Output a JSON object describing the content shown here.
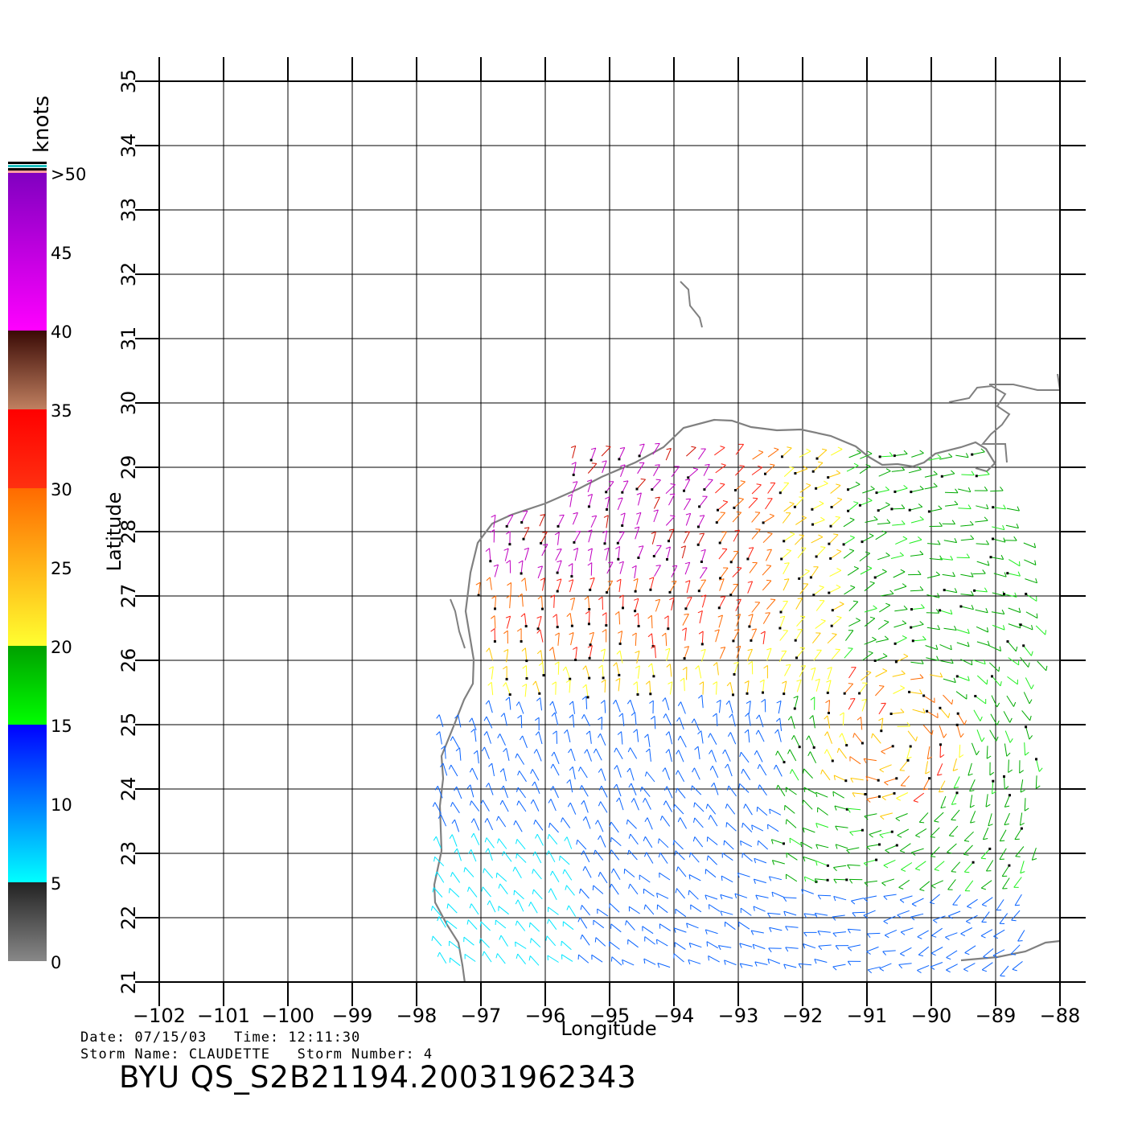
{
  "map": {
    "xlabel": "Longitude",
    "ylabel": "Latitude",
    "lon_ticks": [
      -102,
      -101,
      -100,
      -99,
      -98,
      -97,
      -96,
      -95,
      -94,
      -93,
      -92,
      -91,
      -90,
      -89,
      -88
    ],
    "lat_ticks": [
      21,
      22,
      23,
      24,
      25,
      26,
      27,
      28,
      29,
      30,
      31,
      32,
      33,
      34,
      35
    ],
    "lon_range": [
      -102,
      -88
    ],
    "lat_range": [
      21,
      35
    ],
    "grid": true,
    "coastline_color": "#808080"
  },
  "colorbar": {
    "unit_label": "knots",
    "bands": [
      {
        "from": 0,
        "to": 5,
        "top_color": "#222222",
        "bottom_color": "#888888"
      },
      {
        "from": 5,
        "to": 15,
        "top_color": "#0000ff",
        "bottom_color": "#00ffff"
      },
      {
        "from": 15,
        "to": 20,
        "top_color": "#00a000",
        "bottom_color": "#00ff00"
      },
      {
        "from": 20,
        "to": 30,
        "top_color": "#ff6a00",
        "bottom_color": "#ffff30"
      },
      {
        "from": 30,
        "to": 35,
        "top_color": "#ff0000",
        "bottom_color": "#ff3010"
      },
      {
        "from": 35,
        "to": 40,
        "top_color": "#3a0a05",
        "bottom_color": "#c08060"
      },
      {
        "from": 40,
        "to": 50,
        "top_color": "#8000c0",
        "bottom_color": "#ff00ff"
      }
    ],
    "tick_labels": [
      "0",
      "5",
      "10",
      "15",
      "20",
      "25",
      "30",
      "35",
      "40",
      "45",
      ">50"
    ]
  },
  "wind_field": {
    "storm_center": [
      -90.6,
      24.8
    ],
    "speed_scale_knots": [
      0,
      50
    ]
  },
  "metadata": {
    "date_line": "Date: 07/15/03   Time: 12:11:30",
    "storm_line": "Storm Name: CLAUDETTE   Storm Number: 4",
    "product_id": "BYU QS_S2B21194.20031962343"
  }
}
